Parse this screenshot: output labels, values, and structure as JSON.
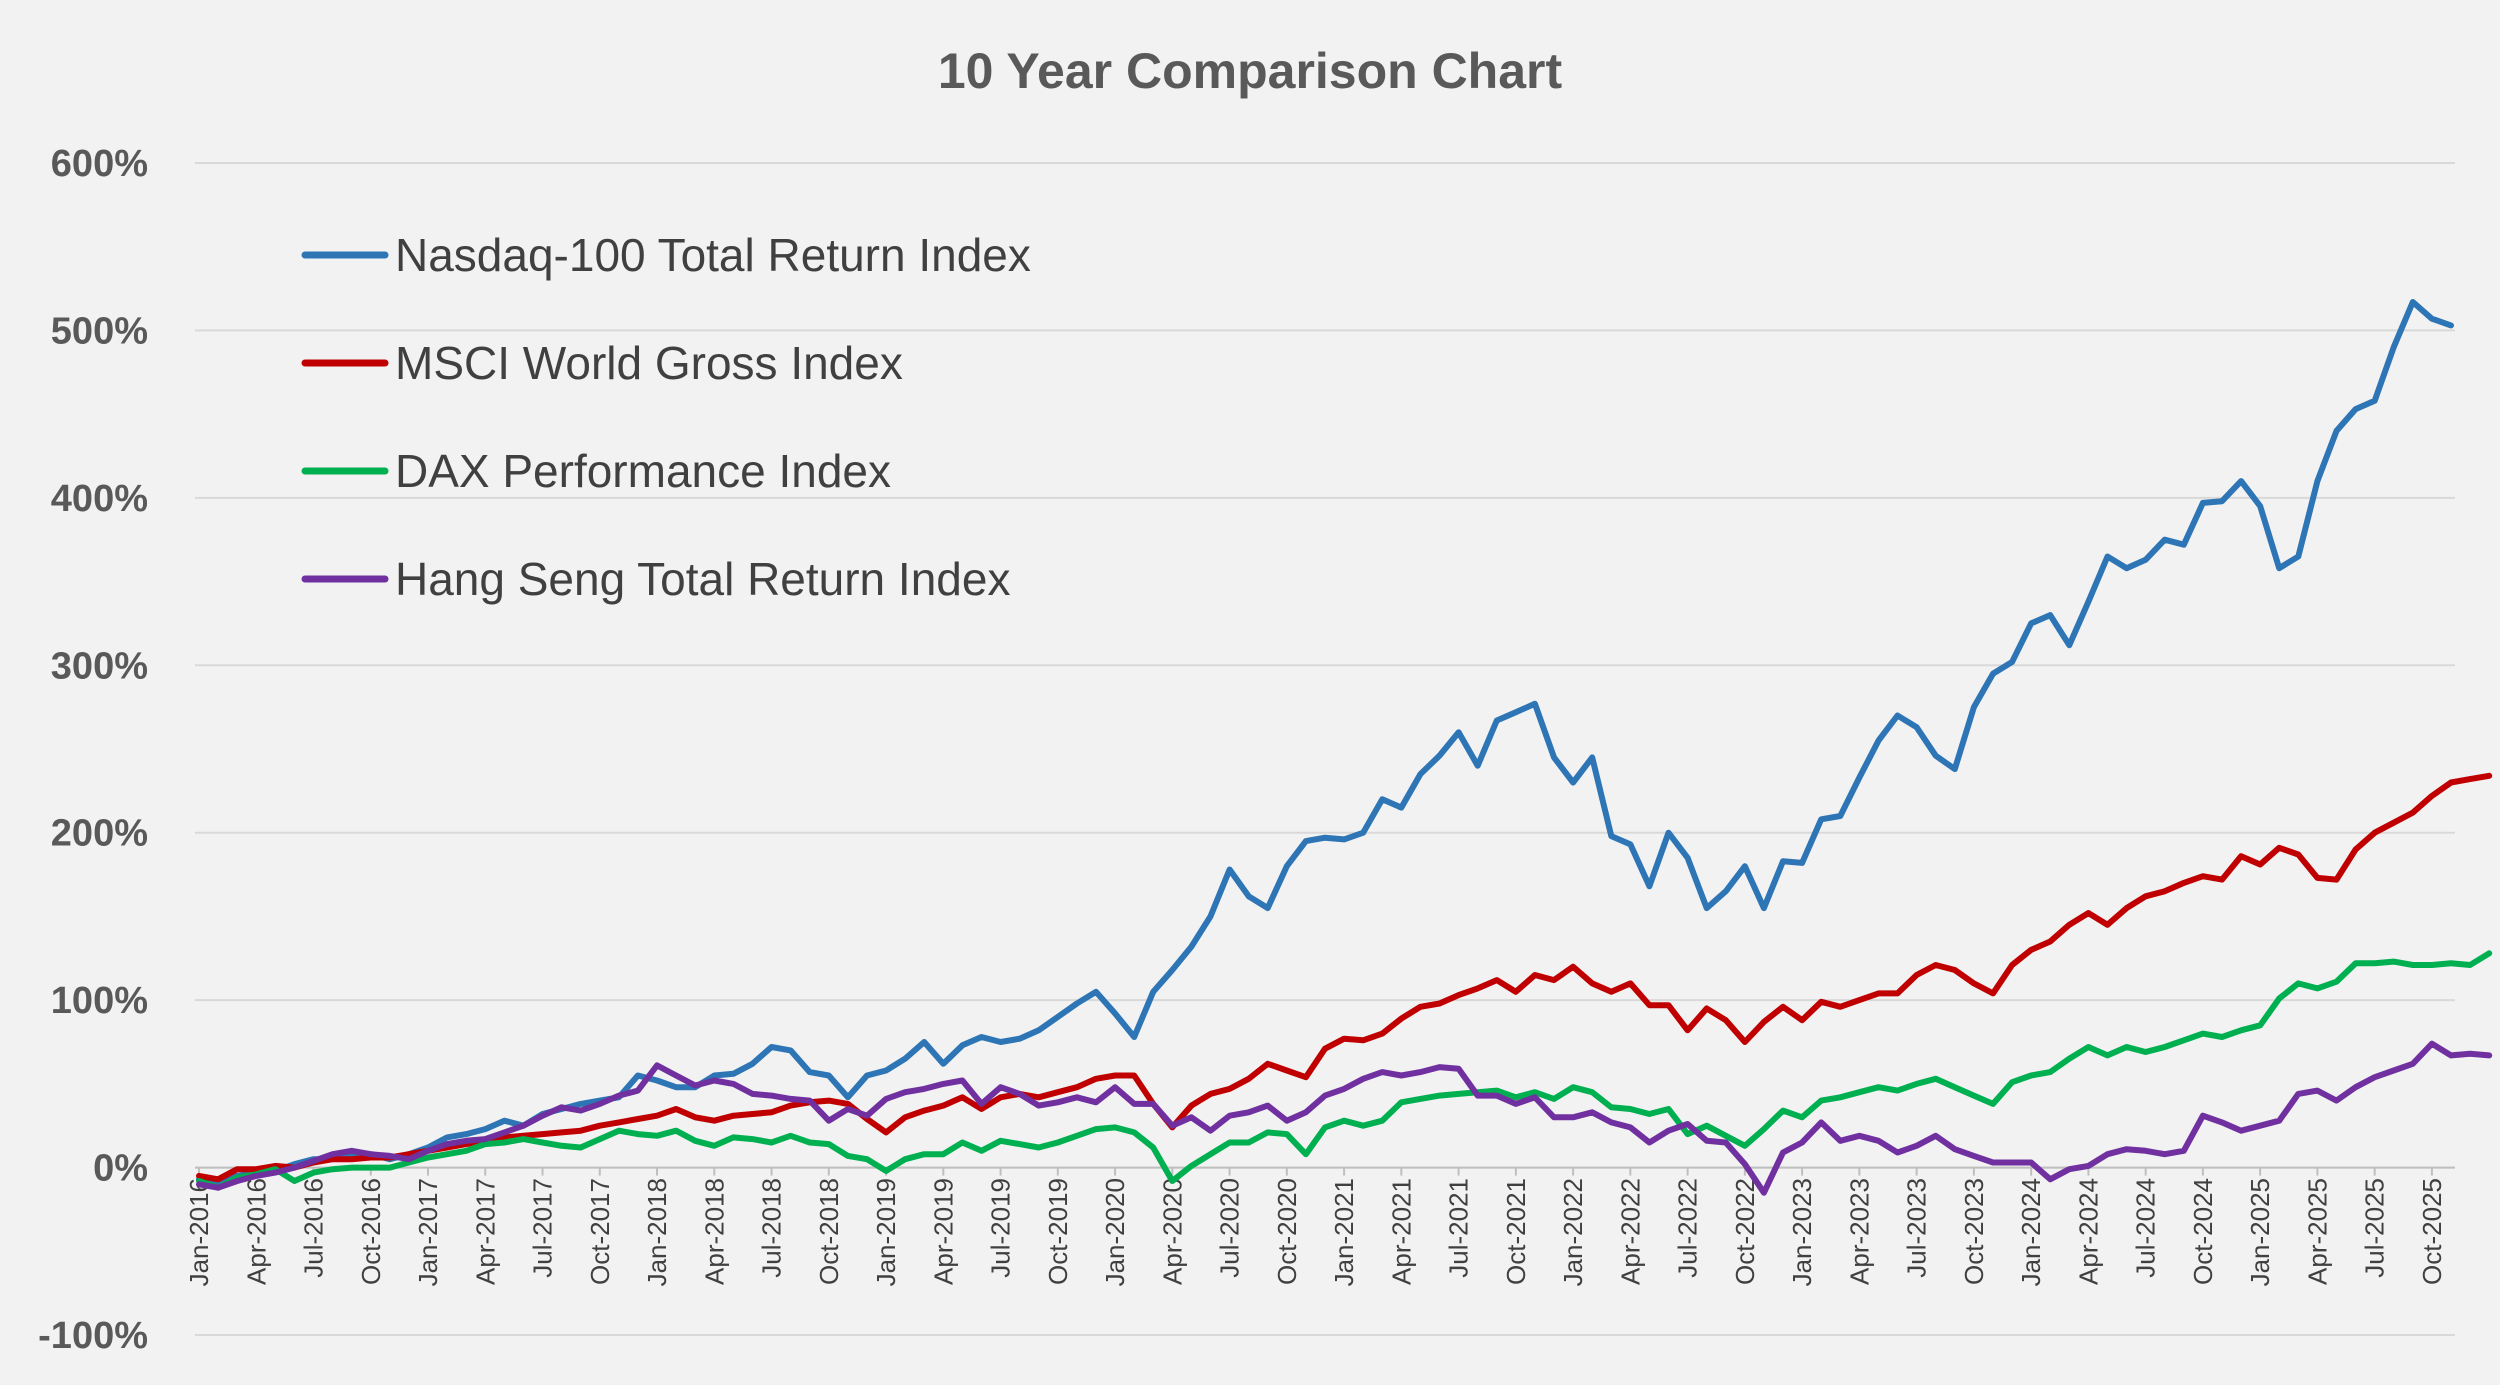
{
  "chart_data": {
    "type": "line",
    "title": "10 Year Comparison Chart",
    "xlabel": "",
    "ylabel": "",
    "ylim": [
      -100,
      600
    ],
    "y_ticks": [
      -100,
      0,
      100,
      200,
      300,
      400,
      500,
      600
    ],
    "y_tick_labels": [
      "-100%",
      "0%",
      "100%",
      "200%",
      "300%",
      "400%",
      "500%",
      "600%"
    ],
    "x_tick_labels": [
      "Jan-2016",
      "Apr-2016",
      "Jul-2016",
      "Oct-2016",
      "Jan-2017",
      "Apr-2017",
      "Jul-2017",
      "Oct-2017",
      "Jan-2018",
      "Apr-2018",
      "Jul-2018",
      "Oct-2018",
      "Jan-2019",
      "Apr-2019",
      "Jul-2019",
      "Oct-2019",
      "Jan-2020",
      "Apr-2020",
      "Jul-2020",
      "Oct-2020",
      "Jan-2021",
      "Apr-2021",
      "Jul-2021",
      "Oct-2021",
      "Jan-2022",
      "Apr-2022",
      "Jul-2022",
      "Oct-2022",
      "Jan-2023",
      "Apr-2023",
      "Jul-2023",
      "Oct-2023",
      "Jan-2024",
      "Apr-2024",
      "Jul-2024",
      "Oct-2024",
      "Jan-2025",
      "Apr-2025",
      "Jul-2025",
      "Oct-2025"
    ],
    "x_tick_every": 3,
    "grid": true,
    "legend_position": "top-left",
    "series": [
      {
        "name": "Nasdaq-100 Total Return Index",
        "color": "#2e75b6",
        "values": [
          -7,
          -10,
          -5,
          -3,
          -2,
          2,
          5,
          5,
          7,
          8,
          5,
          8,
          12,
          18,
          20,
          23,
          28,
          25,
          32,
          35,
          38,
          40,
          42,
          55,
          52,
          48,
          48,
          55,
          56,
          62,
          72,
          70,
          57,
          55,
          42,
          55,
          58,
          65,
          75,
          62,
          73,
          78,
          75,
          77,
          82,
          90,
          98,
          105,
          92,
          78,
          105,
          118,
          132,
          150,
          178,
          162,
          155,
          180,
          195,
          197,
          196,
          200,
          220,
          215,
          235,
          246,
          260,
          240,
          267,
          272,
          277,
          245,
          230,
          245,
          198,
          193,
          168,
          200,
          185,
          155,
          165,
          180,
          155,
          183,
          182,
          208,
          210,
          233,
          255,
          270,
          263,
          246,
          238,
          275,
          295,
          302,
          325,
          330,
          312,
          338,
          365,
          358,
          363,
          375,
          372,
          397,
          398,
          410,
          395,
          358,
          365,
          410,
          440,
          453,
          458,
          490,
          517,
          507,
          503
        ]
      },
      {
        "name": "MSCI World Gross Index",
        "color": "#c00000",
        "values": [
          -5,
          -7,
          -1,
          -1,
          1,
          0,
          3,
          5,
          5,
          6,
          6,
          8,
          10,
          12,
          14,
          16,
          18,
          19,
          20,
          21,
          22,
          25,
          27,
          29,
          31,
          35,
          30,
          28,
          31,
          32,
          33,
          37,
          39,
          40,
          38,
          29,
          21,
          30,
          34,
          37,
          42,
          35,
          42,
          44,
          42,
          45,
          48,
          53,
          55,
          55,
          38,
          24,
          37,
          44,
          47,
          53,
          62,
          58,
          54,
          71,
          77,
          76,
          80,
          89,
          96,
          98,
          103,
          107,
          112,
          105,
          115,
          112,
          120,
          110,
          105,
          110,
          97,
          97,
          82,
          95,
          88,
          75,
          87,
          96,
          88,
          99,
          96,
          100,
          104,
          104,
          115,
          121,
          118,
          110,
          104,
          121,
          130,
          135,
          145,
          152,
          145,
          155,
          162,
          165,
          170,
          174,
          172,
          186,
          181,
          191,
          187,
          173,
          172,
          190,
          200,
          206,
          212,
          222,
          230,
          232,
          234
        ]
      },
      {
        "name": "DAX Performance Index",
        "color": "#00b050",
        "values": [
          -8,
          -12,
          -6,
          -4,
          -1,
          -8,
          -3,
          -1,
          0,
          0,
          0,
          3,
          6,
          8,
          10,
          14,
          15,
          17,
          15,
          13,
          12,
          17,
          22,
          20,
          19,
          22,
          16,
          13,
          18,
          17,
          15,
          19,
          15,
          14,
          7,
          5,
          -2,
          5,
          8,
          8,
          15,
          10,
          16,
          14,
          12,
          15,
          19,
          23,
          24,
          21,
          12,
          -8,
          1,
          8,
          15,
          15,
          21,
          20,
          8,
          24,
          28,
          25,
          28,
          39,
          41,
          43,
          44,
          45,
          46,
          42,
          45,
          41,
          48,
          45,
          36,
          35,
          32,
          35,
          20,
          25,
          19,
          13,
          23,
          34,
          30,
          40,
          42,
          45,
          48,
          46,
          50,
          53,
          48,
          43,
          38,
          51,
          55,
          57,
          65,
          72,
          67,
          72,
          69,
          72,
          76,
          80,
          78,
          82,
          85,
          101,
          110,
          107,
          111,
          122,
          122,
          123,
          121,
          121,
          122,
          121,
          128
        ]
      },
      {
        "name": "Hang Seng Total Return Index",
        "color": "#7030a0",
        "values": [
          -10,
          -12,
          -8,
          -5,
          -3,
          0,
          4,
          8,
          10,
          8,
          7,
          5,
          10,
          14,
          16,
          17,
          21,
          25,
          31,
          36,
          34,
          38,
          43,
          46,
          61,
          55,
          49,
          52,
          50,
          44,
          43,
          41,
          40,
          28,
          35,
          31,
          41,
          45,
          47,
          50,
          52,
          38,
          48,
          44,
          37,
          39,
          42,
          39,
          48,
          38,
          38,
          25,
          30,
          22,
          31,
          33,
          37,
          28,
          33,
          43,
          47,
          53,
          57,
          55,
          57,
          60,
          59,
          43,
          43,
          38,
          42,
          30,
          30,
          33,
          27,
          24,
          15,
          22,
          26,
          16,
          15,
          2,
          -15,
          9,
          15,
          27,
          16,
          19,
          16,
          9,
          13,
          19,
          11,
          7,
          3,
          3,
          3,
          -7,
          -1,
          1,
          8,
          11,
          10,
          8,
          10,
          31,
          27,
          22,
          25,
          28,
          44,
          46,
          40,
          48,
          54,
          58,
          62,
          74,
          67,
          68,
          67
        ]
      }
    ]
  }
}
